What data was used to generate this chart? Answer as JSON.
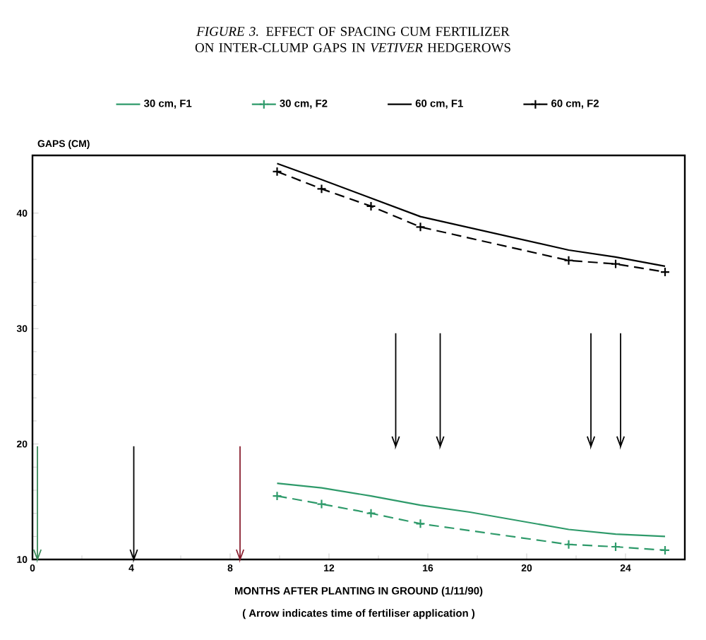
{
  "chart_data": {
    "type": "line",
    "title": "*FIGURE 3.*   EFFECT OF SPACING CUM FERTILIZER  ON INTER-CLUMP  GAPS IN *VETIVER* HEDGEROWS",
    "xlabel": "MONTHS AFTER PLANTING IN GROUND (1/11/90)",
    "ylabel": "GAPS (CM)",
    "annotations": [
      "( Arrow indicates time of fertiliser application )"
    ],
    "x": [
      9.9,
      11.7,
      13.7,
      15.7,
      17.7,
      21.7,
      23.6,
      25.6
    ],
    "series": [
      {
        "name": "30 cm, F1",
        "color": "#2e9a6a",
        "marker": "none",
        "line_style": "solid",
        "values": [
          16.6,
          16.2,
          15.5,
          14.7,
          14.1,
          12.6,
          12.2,
          12.0
        ]
      },
      {
        "name": "30 cm, F2",
        "color": "#2e9a6a",
        "marker": "cross",
        "line_style": "dashed",
        "x": [
          9.9,
          11.7,
          13.7,
          15.7,
          21.7,
          23.6,
          25.6
        ],
        "values": [
          15.5,
          14.8,
          14.0,
          13.1,
          11.3,
          11.1,
          10.8
        ]
      },
      {
        "name": "60 cm, F1",
        "color": "#000000",
        "marker": "none",
        "line_style": "solid",
        "x": [
          9.9,
          11.7,
          13.7,
          15.7,
          21.7,
          23.6,
          25.6
        ],
        "values": [
          44.3,
          42.9,
          41.3,
          39.7,
          36.8,
          36.2,
          35.4
        ]
      },
      {
        "name": "60 cm, F2",
        "color": "#000000",
        "marker": "cross",
        "line_style": "dashed",
        "x": [
          9.9,
          11.7,
          13.7,
          15.7,
          21.7,
          23.6,
          25.6
        ],
        "values": [
          43.6,
          42.1,
          40.6,
          38.8,
          35.9,
          35.6,
          34.9
        ]
      }
    ],
    "xlim": [
      0,
      26.4
    ],
    "ylim": [
      10,
      45
    ],
    "xticks": [
      0,
      4,
      8,
      12,
      16,
      20,
      24
    ],
    "yticks": [
      10,
      20,
      30,
      40
    ],
    "ref_lines": [
      {
        "axis": "x",
        "value": 0.2,
        "color": "#3a8a5a"
      },
      {
        "axis": "x",
        "value": 4.1,
        "color": "#000000"
      },
      {
        "axis": "x",
        "value": 8.4,
        "color": "#8a2030"
      },
      {
        "axis": "x",
        "value": 14.7,
        "color": "#000000"
      },
      {
        "axis": "x",
        "value": 16.5,
        "color": "#000000"
      },
      {
        "axis": "x",
        "value": 22.6,
        "color": "#000000"
      },
      {
        "axis": "x",
        "value": 23.8,
        "color": "#000000"
      }
    ],
    "legend": "top",
    "grid": false
  }
}
